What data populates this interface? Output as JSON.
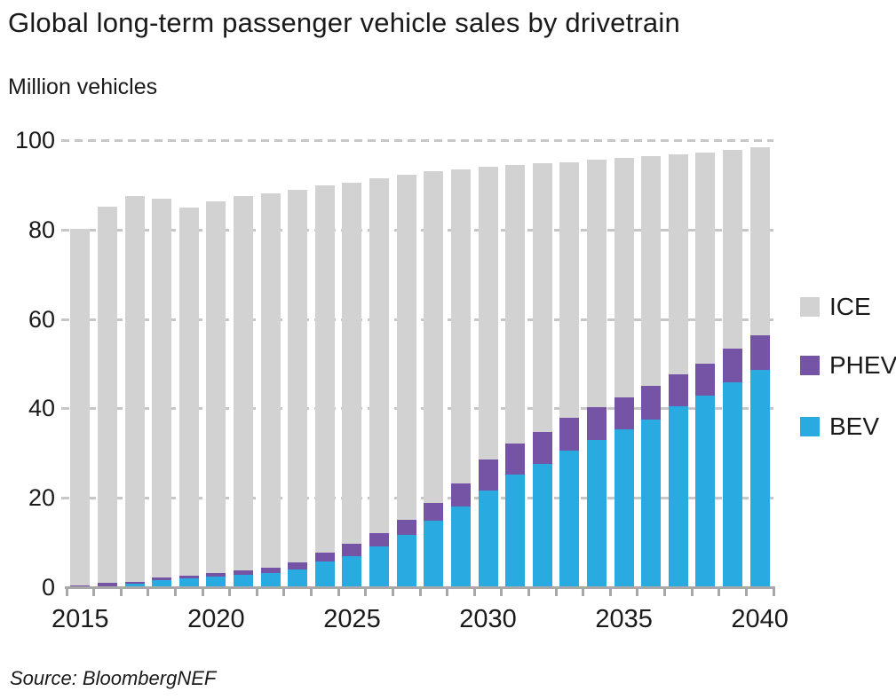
{
  "header": {
    "title": "Global long-term passenger vehicle sales by drivetrain",
    "units_label": "Million vehicles"
  },
  "footer": {
    "source": "Source: BloombergNEF"
  },
  "colors": {
    "ice": "#d3d2d2",
    "phev": "#7553a5",
    "bev": "#29abe2",
    "gridline": "#c7c7c7",
    "axis": "#a8a8a8",
    "text": "#1a1a1a"
  },
  "chart_data": {
    "type": "bar",
    "stacked": true,
    "title": "Global long-term passenger vehicle sales by drivetrain",
    "ylabel": "Million vehicles",
    "xlabel": "",
    "ylim": [
      0,
      100
    ],
    "yticks": [
      0,
      20,
      40,
      60,
      80,
      100
    ],
    "grid": "horizontal dashed lines at 20, 40, 60, 80, 100",
    "legend_position": "right",
    "legend_order": [
      "ICE",
      "PHEV",
      "BEV"
    ],
    "x": [
      2015,
      2016,
      2017,
      2018,
      2019,
      2020,
      2021,
      2022,
      2023,
      2024,
      2025,
      2026,
      2027,
      2028,
      2029,
      2030,
      2031,
      2032,
      2033,
      2034,
      2035,
      2036,
      2037,
      2038,
      2039,
      2040
    ],
    "x_tick_labels": [
      "2015",
      "2020",
      "2025",
      "2030",
      "2035",
      "2040"
    ],
    "x_tick_indices": [
      0,
      5,
      10,
      15,
      20,
      25
    ],
    "series": [
      {
        "name": "BEV",
        "color": "#29abe2",
        "values": [
          0.2,
          0.3,
          0.7,
          1.5,
          2.0,
          2.3,
          2.7,
          3.2,
          3.9,
          5.7,
          7.0,
          9.2,
          11.7,
          14.9,
          18.0,
          21.6,
          25.3,
          27.6,
          30.5,
          32.9,
          35.3,
          37.6,
          40.4,
          42.8,
          45.8,
          48.7
        ]
      },
      {
        "name": "PHEV",
        "color": "#7553a5",
        "values": [
          0.2,
          0.6,
          0.5,
          0.6,
          0.6,
          0.8,
          1.0,
          1.1,
          1.7,
          2.1,
          2.8,
          3.0,
          3.4,
          4.0,
          5.2,
          6.9,
          6.8,
          7.2,
          7.4,
          7.3,
          7.1,
          7.4,
          7.3,
          7.3,
          7.5,
          7.6
        ]
      },
      {
        "name": "ICE",
        "color": "#d3d2d2",
        "values": [
          79.8,
          84.2,
          86.3,
          84.8,
          82.4,
          83.3,
          83.8,
          83.8,
          83.2,
          82.0,
          80.7,
          79.2,
          77.2,
          74.1,
          70.3,
          65.5,
          62.3,
          60.0,
          57.2,
          55.4,
          53.6,
          51.4,
          49.1,
          47.2,
          44.6,
          42.2
        ]
      }
    ],
    "totals": [
      80.2,
      85.1,
      87.5,
      86.9,
      85.0,
      86.4,
      87.5,
      88.1,
      88.8,
      89.8,
      90.5,
      91.4,
      92.3,
      93.0,
      93.5,
      94.0,
      94.4,
      94.8,
      95.1,
      95.6,
      96.0,
      96.4,
      96.8,
      97.3,
      97.9,
      98.5
    ]
  }
}
